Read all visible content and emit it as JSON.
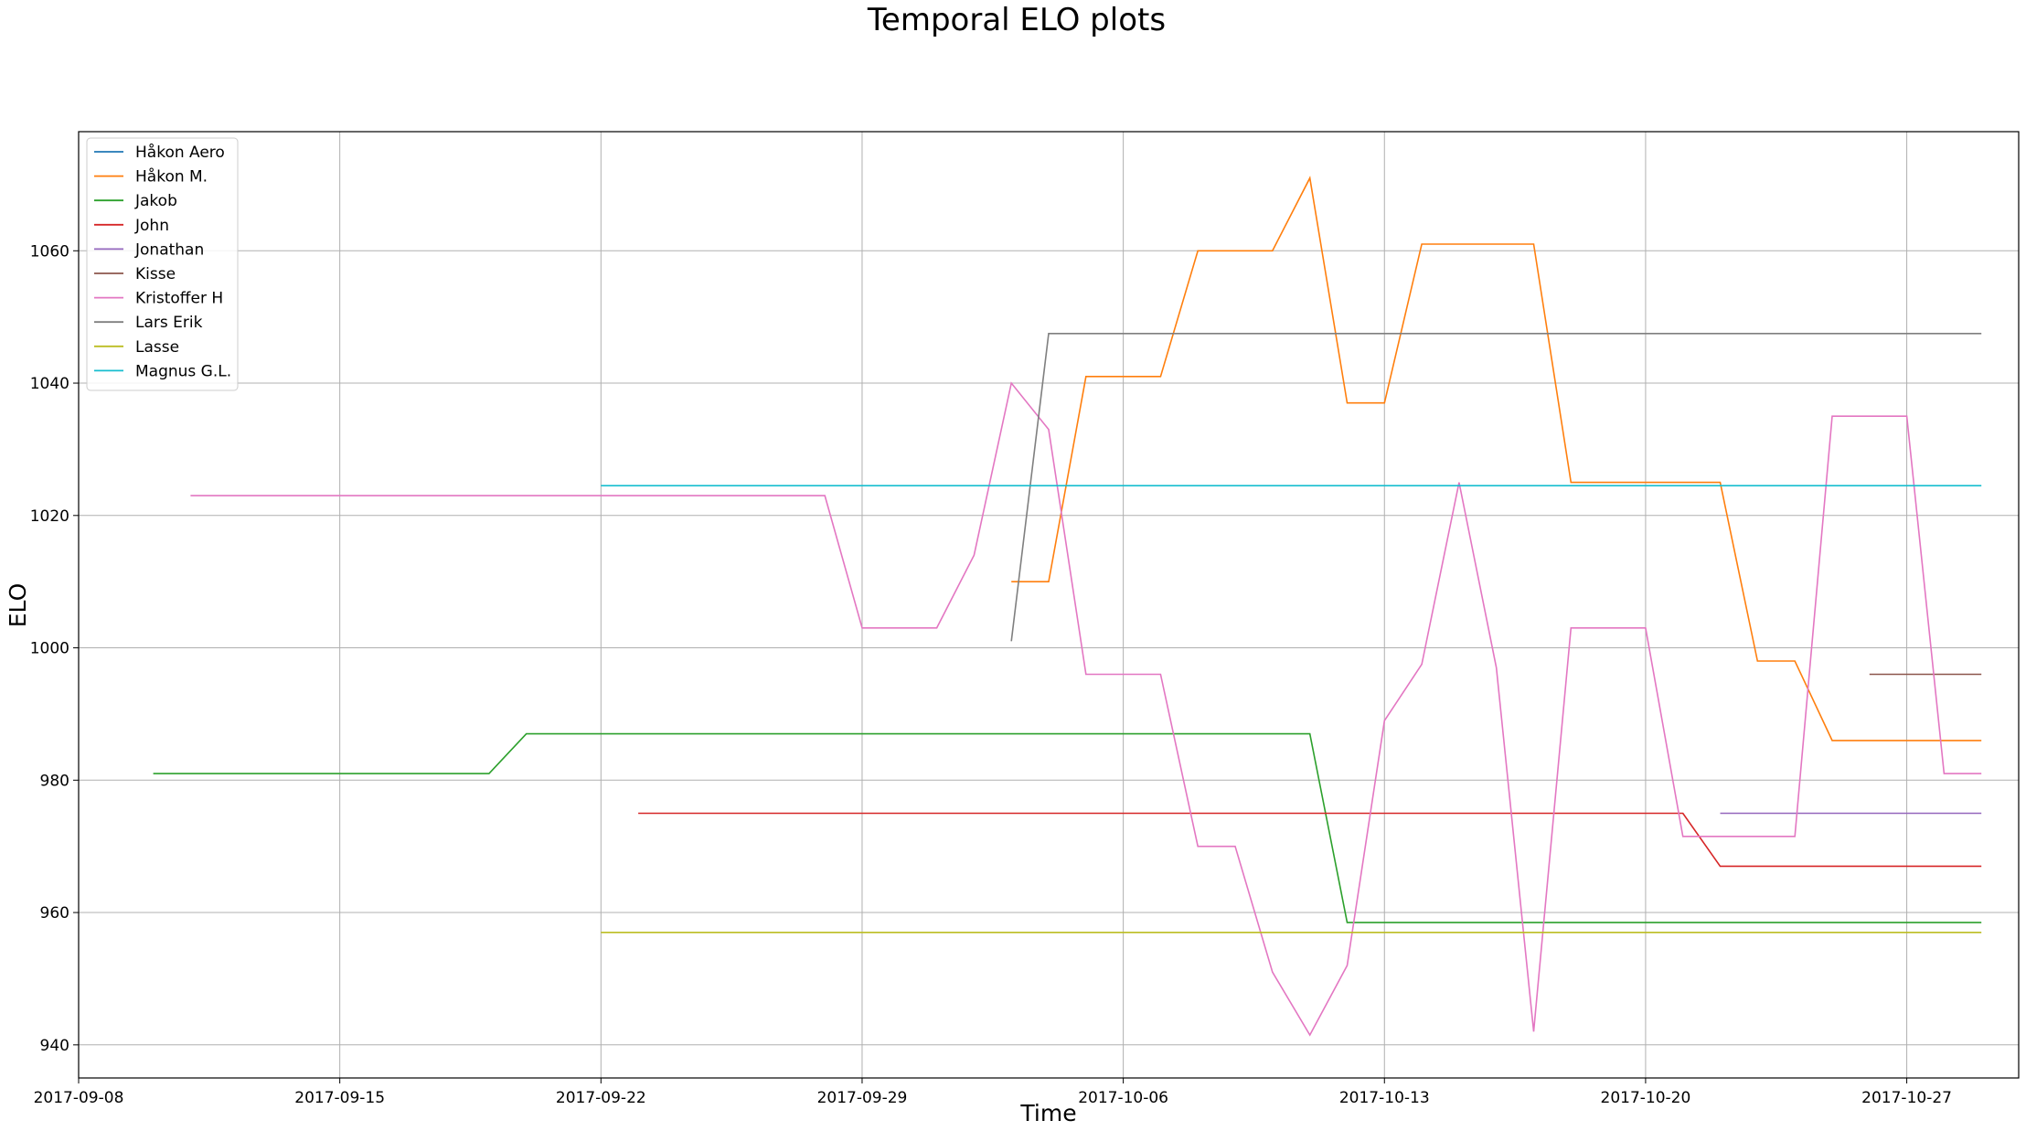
{
  "chart_data": {
    "type": "line",
    "title": "Temporal ELO plots",
    "xlabel": "Time",
    "ylabel": "ELO",
    "x_axis_type": "date",
    "xlim": [
      "2017-09-08",
      "2017-10-30"
    ],
    "ylim": [
      935,
      1078
    ],
    "x_ticks": [
      "2017-09-08",
      "2017-09-15",
      "2017-09-22",
      "2017-09-29",
      "2017-10-06",
      "2017-10-13",
      "2017-10-20",
      "2017-10-27"
    ],
    "y_ticks": [
      940,
      960,
      980,
      1000,
      1020,
      1040,
      1060
    ],
    "grid": true,
    "legend_position": "top-left",
    "series": [
      {
        "name": "Håkon Aero",
        "color": "#1f77b4",
        "points": []
      },
      {
        "name": "Håkon M.",
        "color": "#ff7f0e",
        "points": [
          [
            "2017-10-03",
            1010
          ],
          [
            "2017-10-04",
            1010
          ],
          [
            "2017-10-05",
            1041
          ],
          [
            "2017-10-07",
            1041
          ],
          [
            "2017-10-08",
            1060
          ],
          [
            "2017-10-10",
            1060
          ],
          [
            "2017-10-11",
            1071
          ],
          [
            "2017-10-12",
            1037
          ],
          [
            "2017-10-13",
            1037
          ],
          [
            "2017-10-14",
            1061
          ],
          [
            "2017-10-17",
            1061
          ],
          [
            "2017-10-18",
            1025
          ],
          [
            "2017-10-22",
            1025
          ],
          [
            "2017-10-23",
            998
          ],
          [
            "2017-10-24",
            998
          ],
          [
            "2017-10-25",
            986
          ],
          [
            "2017-10-29",
            986
          ]
        ]
      },
      {
        "name": "Jakob",
        "color": "#2ca02c",
        "points": [
          [
            "2017-09-10",
            981
          ],
          [
            "2017-09-19",
            981
          ],
          [
            "2017-09-20",
            987
          ],
          [
            "2017-10-11",
            987
          ],
          [
            "2017-10-12",
            958.5
          ],
          [
            "2017-10-29",
            958.5
          ]
        ]
      },
      {
        "name": "John",
        "color": "#d62728",
        "points": [
          [
            "2017-09-23",
            975
          ],
          [
            "2017-10-21",
            975
          ],
          [
            "2017-10-22",
            967
          ],
          [
            "2017-10-29",
            967
          ]
        ]
      },
      {
        "name": "Jonathan",
        "color": "#9467bd",
        "points": [
          [
            "2017-10-22",
            975
          ],
          [
            "2017-10-29",
            975
          ]
        ]
      },
      {
        "name": "Kisse",
        "color": "#8c564b",
        "points": [
          [
            "2017-10-26",
            996
          ],
          [
            "2017-10-29",
            996
          ]
        ]
      },
      {
        "name": "Kristoffer H",
        "color": "#e377c2",
        "points": [
          [
            "2017-09-11",
            1023
          ],
          [
            "2017-09-28",
            1023
          ],
          [
            "2017-09-29",
            1003
          ],
          [
            "2017-10-01",
            1003
          ],
          [
            "2017-10-02",
            1014
          ],
          [
            "2017-10-03",
            1040
          ],
          [
            "2017-10-04",
            1033
          ],
          [
            "2017-10-05",
            996
          ],
          [
            "2017-10-07",
            996
          ],
          [
            "2017-10-08",
            970
          ],
          [
            "2017-10-09",
            970
          ],
          [
            "2017-10-10",
            951
          ],
          [
            "2017-10-11",
            941.5
          ],
          [
            "2017-10-12",
            952
          ],
          [
            "2017-10-13",
            989
          ],
          [
            "2017-10-14",
            997.5
          ],
          [
            "2017-10-15",
            1025
          ],
          [
            "2017-10-16",
            997
          ],
          [
            "2017-10-17",
            942
          ],
          [
            "2017-10-18",
            1003
          ],
          [
            "2017-10-20",
            1003
          ],
          [
            "2017-10-21",
            971.5
          ],
          [
            "2017-10-24",
            971.5
          ],
          [
            "2017-10-25",
            1035
          ],
          [
            "2017-10-27",
            1035
          ],
          [
            "2017-10-28",
            981
          ],
          [
            "2017-10-29",
            981
          ]
        ]
      },
      {
        "name": "Lars Erik",
        "color": "#7f7f7f",
        "points": [
          [
            "2017-10-03",
            1001
          ],
          [
            "2017-10-04",
            1047.5
          ],
          [
            "2017-10-29",
            1047.5
          ]
        ]
      },
      {
        "name": "Lasse",
        "color": "#bcbd22",
        "points": [
          [
            "2017-09-22",
            957
          ],
          [
            "2017-10-29",
            957
          ]
        ]
      },
      {
        "name": "Magnus G.L.",
        "color": "#17becf",
        "points": [
          [
            "2017-09-22",
            1024.5
          ],
          [
            "2017-10-29",
            1024.5
          ]
        ]
      }
    ]
  }
}
